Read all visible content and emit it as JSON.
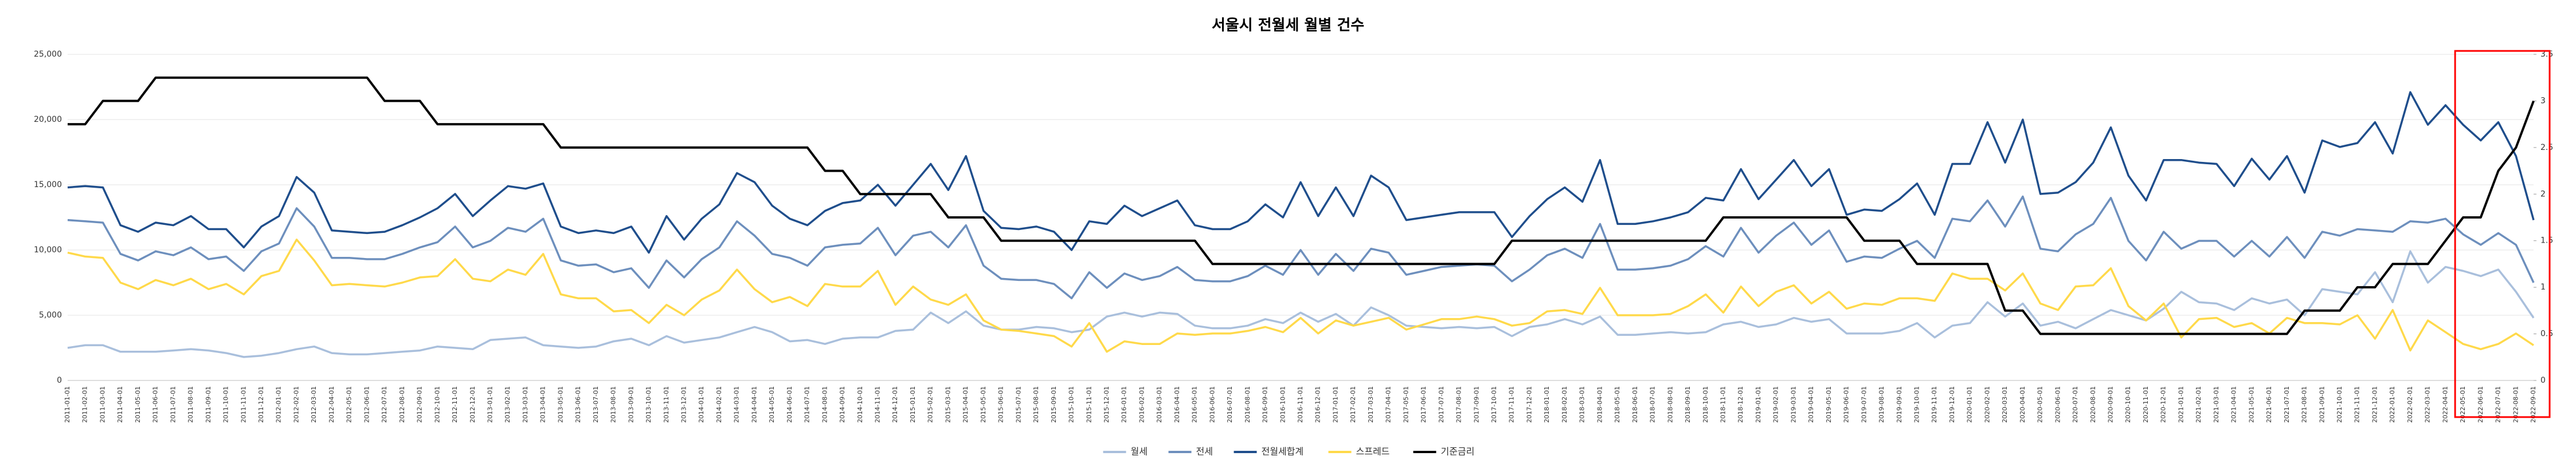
{
  "chart_data": {
    "type": "line",
    "title": "서울시 전월세 월별 건수",
    "categories": [
      "2011-01-01",
      "2011-02-01",
      "2011-03-01",
      "2011-04-01",
      "2011-05-01",
      "2011-06-01",
      "2011-07-01",
      "2011-08-01",
      "2011-09-01",
      "2011-10-01",
      "2011-11-01",
      "2011-12-01",
      "2012-01-01",
      "2012-02-01",
      "2012-03-01",
      "2012-04-01",
      "2012-05-01",
      "2012-06-01",
      "2012-07-01",
      "2012-08-01",
      "2012-09-01",
      "2012-10-01",
      "2012-11-01",
      "2012-12-01",
      "2013-01-01",
      "2013-02-01",
      "2013-03-01",
      "2013-04-01",
      "2013-05-01",
      "2013-06-01",
      "2013-07-01",
      "2013-08-01",
      "2013-09-01",
      "2013-10-01",
      "2013-11-01",
      "2013-12-01",
      "2014-01-01",
      "2014-02-01",
      "2014-03-01",
      "2014-04-01",
      "2014-05-01",
      "2014-06-01",
      "2014-07-01",
      "2014-08-01",
      "2014-09-01",
      "2014-10-01",
      "2014-11-01",
      "2014-12-01",
      "2015-01-01",
      "2015-02-01",
      "2015-03-01",
      "2015-04-01",
      "2015-05-01",
      "2015-06-01",
      "2015-07-01",
      "2015-08-01",
      "2015-09-01",
      "2015-10-01",
      "2015-11-01",
      "2015-12-01",
      "2016-01-01",
      "2016-02-01",
      "2016-03-01",
      "2016-04-01",
      "2016-05-01",
      "2016-06-01",
      "2016-07-01",
      "2016-08-01",
      "2016-09-01",
      "2016-10-01",
      "2016-11-01",
      "2016-12-01",
      "2017-01-01",
      "2017-02-01",
      "2017-03-01",
      "2017-04-01",
      "2017-05-01",
      "2017-06-01",
      "2017-07-01",
      "2017-08-01",
      "2017-09-01",
      "2017-10-01",
      "2017-11-01",
      "2017-12-01",
      "2018-01-01",
      "2018-02-01",
      "2018-03-01",
      "2018-04-01",
      "2018-05-01",
      "2018-06-01",
      "2018-07-01",
      "2018-08-01",
      "2018-09-01",
      "2018-10-01",
      "2018-11-01",
      "2018-12-01",
      "2019-01-01",
      "2019-02-01",
      "2019-03-01",
      "2019-04-01",
      "2019-05-01",
      "2019-06-01",
      "2019-07-01",
      "2019-08-01",
      "2019-09-01",
      "2019-10-01",
      "2019-11-01",
      "2019-12-01",
      "2020-01-01",
      "2020-02-01",
      "2020-03-01",
      "2020-04-01",
      "2020-05-01",
      "2020-06-01",
      "2020-07-01",
      "2020-08-01",
      "2020-09-01",
      "2020-10-01",
      "2020-11-01",
      "2020-12-01",
      "2021-01-01",
      "2021-02-01",
      "2021-03-01",
      "2021-04-01",
      "2021-05-01",
      "2021-06-01",
      "2021-07-01",
      "2021-08-01",
      "2021-09-01",
      "2021-10-01",
      "2021-11-01",
      "2021-12-01",
      "2022-01-01",
      "2022-02-01",
      "2022-03-01",
      "2022-04-01",
      "2022-05-01",
      "2022-06-01",
      "2022-07-01",
      "2022-08-01",
      "2022-09-01"
    ],
    "series": [
      {
        "name": "월세",
        "color": "#a9bfdc",
        "values": [
          2500,
          2700,
          2700,
          2200,
          2200,
          2200,
          2300,
          2400,
          2300,
          2100,
          1800,
          1900,
          2100,
          2400,
          2600,
          2100,
          2000,
          2000,
          2100,
          2200,
          2300,
          2600,
          2500,
          2400,
          3100,
          3200,
          3300,
          2700,
          2600,
          2500,
          2600,
          3000,
          3200,
          2700,
          3400,
          2900,
          3100,
          3300,
          3700,
          4100,
          3700,
          3000,
          3100,
          2800,
          3200,
          3300,
          3300,
          3800,
          3900,
          5200,
          4400,
          5300,
          4200,
          3900,
          3900,
          4100,
          4000,
          3700,
          3900,
          4900,
          5200,
          4900,
          5200,
          5100,
          4200,
          4000,
          4000,
          4200,
          4700,
          4400,
          5200,
          4500,
          5100,
          4200,
          5600,
          5000,
          4200,
          4100,
          4000,
          4100,
          4000,
          4100,
          3400,
          4100,
          4300,
          4700,
          4300,
          4900,
          3500,
          3500,
          3600,
          3700,
          3600,
          3700,
          4300,
          4500,
          4100,
          4300,
          4800,
          4500,
          4700,
          3600,
          3600,
          3600,
          3800,
          4400,
          3300,
          4200,
          4400,
          6000,
          4900,
          5900,
          4200,
          4500,
          4000,
          4700,
          5400,
          5000,
          4600,
          5500,
          6800,
          6000,
          5900,
          5400,
          6300,
          5900,
          6200,
          5000,
          7000,
          6800,
          6600,
          8300,
          6000,
          9900,
          7500,
          8700,
          8400,
          8000,
          8500,
          6800,
          4800
        ]
      },
      {
        "name": "전세",
        "color": "#6d8fbd",
        "values": [
          12300,
          12200,
          12100,
          9700,
          9200,
          9900,
          9600,
          10200,
          9300,
          9500,
          8400,
          9900,
          10500,
          13200,
          11800,
          9400,
          9400,
          9300,
          9300,
          9700,
          10200,
          10600,
          11800,
          10200,
          10700,
          11700,
          11400,
          12400,
          9200,
          8800,
          8900,
          8300,
          8600,
          7100,
          9200,
          7900,
          9300,
          10200,
          12200,
          11100,
          9700,
          9400,
          8800,
          10200,
          10400,
          10500,
          11700,
          9600,
          11100,
          11400,
          10200,
          11900,
          8800,
          7800,
          7700,
          7700,
          7400,
          6300,
          8300,
          7100,
          8200,
          7700,
          8000,
          8700,
          7700,
          7600,
          7600,
          8000,
          8800,
          8100,
          10000,
          8100,
          9700,
          8400,
          10100,
          9800,
          8100,
          8400,
          8700,
          8800,
          8900,
          8800,
          7600,
          8500,
          9600,
          10100,
          9400,
          12000,
          8500,
          8500,
          8600,
          8800,
          9300,
          10300,
          9500,
          11700,
          9800,
          11100,
          12100,
          10400,
          11500,
          9100,
          9500,
          9400,
          10100,
          10700,
          9400,
          12400,
          12200,
          13800,
          11800,
          14100,
          10100,
          9900,
          11200,
          12000,
          14000,
          10700,
          9200,
          11400,
          10100,
          10700,
          10700,
          9500,
          10700,
          9500,
          11000,
          9400,
          11400,
          11100,
          11600,
          11500,
          11400,
          12200,
          12100,
          12400,
          11200,
          10400,
          11300,
          10400,
          7500
        ]
      },
      {
        "name": "전월세합계",
        "color": "#1f4e8c",
        "values": [
          14800,
          14900,
          14800,
          11900,
          11400,
          12100,
          11900,
          12600,
          11600,
          11600,
          10200,
          11800,
          12600,
          15600,
          14400,
          11500,
          11400,
          11300,
          11400,
          11900,
          12500,
          13200,
          14300,
          12600,
          13800,
          14900,
          14700,
          15100,
          11800,
          11300,
          11500,
          11300,
          11800,
          9800,
          12600,
          10800,
          12400,
          13500,
          15900,
          15200,
          13400,
          12400,
          11900,
          13000,
          13600,
          13800,
          15000,
          13400,
          15000,
          16600,
          14600,
          17200,
          13000,
          11700,
          11600,
          11800,
          11400,
          10000,
          12200,
          12000,
          13400,
          12600,
          13200,
          13800,
          11900,
          11600,
          11600,
          12200,
          13500,
          12500,
          15200,
          12600,
          14800,
          12600,
          15700,
          14800,
          12300,
          12500,
          12700,
          12900,
          12900,
          12900,
          11000,
          12600,
          13900,
          14800,
          13700,
          16900,
          12000,
          12000,
          12200,
          12500,
          12900,
          14000,
          13800,
          16200,
          13900,
          15400,
          16900,
          14900,
          16200,
          12700,
          13100,
          13000,
          13900,
          15100,
          12700,
          16600,
          16600,
          19800,
          16700,
          20000,
          14300,
          14400,
          15200,
          16700,
          19400,
          15700,
          13800,
          16900,
          16900,
          16700,
          16600,
          14900,
          17000,
          15400,
          17200,
          14400,
          18400,
          17900,
          18200,
          19800,
          17400,
          22100,
          19600,
          21100,
          19600,
          18400,
          19800,
          17200,
          12300
        ]
      },
      {
        "name": "스프레드",
        "color": "#ffd94a",
        "values": [
          9800,
          9500,
          9400,
          7500,
          7000,
          7700,
          7300,
          7800,
          7000,
          7400,
          6600,
          8000,
          8400,
          10800,
          9200,
          7300,
          7400,
          7300,
          7200,
          7500,
          7900,
          8000,
          9300,
          7800,
          7600,
          8500,
          8100,
          9700,
          6600,
          6300,
          6300,
          5300,
          5400,
          4400,
          5800,
          5000,
          6200,
          6900,
          8500,
          7000,
          6000,
          6400,
          5700,
          7400,
          7200,
          7200,
          8400,
          5800,
          7200,
          6200,
          5800,
          6600,
          4600,
          3900,
          3800,
          3600,
          3400,
          2600,
          4400,
          2200,
          3000,
          2800,
          2800,
          3600,
          3500,
          3600,
          3600,
          3800,
          4100,
          3700,
          4800,
          3600,
          4600,
          4200,
          4500,
          4800,
          3900,
          4300,
          4700,
          4700,
          4900,
          4700,
          4200,
          4400,
          5300,
          5400,
          5100,
          7100,
          5000,
          5000,
          5000,
          5100,
          5700,
          6600,
          5200,
          7200,
          5700,
          6800,
          7300,
          5900,
          6800,
          5500,
          5900,
          5800,
          6300,
          6300,
          6100,
          8200,
          7800,
          7800,
          6900,
          8200,
          5900,
          5400,
          7200,
          7300,
          8600,
          5700,
          4600,
          5900,
          3300,
          4700,
          4800,
          4100,
          4400,
          3600,
          4800,
          4400,
          4400,
          4300,
          5000,
          3200,
          5400,
          2300,
          4600,
          3700,
          2800,
          2400,
          2800,
          3600,
          2700
        ]
      },
      {
        "name": "기준금리",
        "color": "#000000",
        "axis": "y2",
        "values": [
          2.75,
          2.75,
          3,
          3,
          3,
          3.25,
          3.25,
          3.25,
          3.25,
          3.25,
          3.25,
          3.25,
          3.25,
          3.25,
          3.25,
          3.25,
          3.25,
          3.25,
          3,
          3,
          3,
          2.75,
          2.75,
          2.75,
          2.75,
          2.75,
          2.75,
          2.75,
          2.5,
          2.5,
          2.5,
          2.5,
          2.5,
          2.5,
          2.5,
          2.5,
          2.5,
          2.5,
          2.5,
          2.5,
          2.5,
          2.5,
          2.5,
          2.25,
          2.25,
          2,
          2,
          2,
          2,
          2,
          1.75,
          1.75,
          1.75,
          1.5,
          1.5,
          1.5,
          1.5,
          1.5,
          1.5,
          1.5,
          1.5,
          1.5,
          1.5,
          1.5,
          1.5,
          1.25,
          1.25,
          1.25,
          1.25,
          1.25,
          1.25,
          1.25,
          1.25,
          1.25,
          1.25,
          1.25,
          1.25,
          1.25,
          1.25,
          1.25,
          1.25,
          1.25,
          1.5,
          1.5,
          1.5,
          1.5,
          1.5,
          1.5,
          1.5,
          1.5,
          1.5,
          1.5,
          1.5,
          1.5,
          1.75,
          1.75,
          1.75,
          1.75,
          1.75,
          1.75,
          1.75,
          1.75,
          1.5,
          1.5,
          1.5,
          1.25,
          1.25,
          1.25,
          1.25,
          1.25,
          0.75,
          0.75,
          0.5,
          0.5,
          0.5,
          0.5,
          0.5,
          0.5,
          0.5,
          0.5,
          0.5,
          0.5,
          0.5,
          0.5,
          0.5,
          0.5,
          0.5,
          0.75,
          0.75,
          0.75,
          1,
          1,
          1.25,
          1.25,
          1.25,
          1.5,
          1.75,
          1.75,
          2.25,
          2.5,
          3
        ]
      }
    ],
    "ylim": [
      0,
      25000
    ],
    "yticks": [
      0,
      {
        "value": 5000,
        "label": "5,000"
      },
      {
        "value": 10000,
        "label": "10,000"
      },
      {
        "value": 15000,
        "label": "15,000"
      },
      {
        "value": 20000,
        "label": "20,000"
      },
      {
        "value": 25000,
        "label": "25,000"
      }
    ],
    "y2lim": [
      0,
      3.5
    ],
    "y2ticks": [
      0,
      0.5,
      1,
      1.5,
      2,
      2.5,
      3,
      3.5
    ],
    "grid": true,
    "legend": "bottom"
  }
}
